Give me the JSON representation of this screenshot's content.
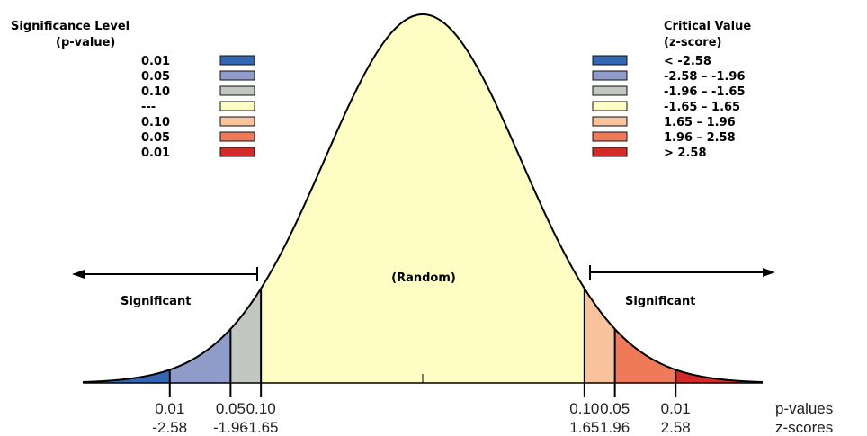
{
  "legend_left": {
    "title_line1": "Significance Level",
    "title_line2": "(p-value)",
    "items": [
      {
        "label": "0.01",
        "color": "#3366b3"
      },
      {
        "label": "0.05",
        "color": "#8f9cc9"
      },
      {
        "label": "0.10",
        "color": "#c3c7c2"
      },
      {
        "label": "---",
        "color": "#fdfdc4"
      },
      {
        "label": "0.10",
        "color": "#f8c29c"
      },
      {
        "label": "0.05",
        "color": "#ef7a5a"
      },
      {
        "label": "0.01",
        "color": "#d42a28"
      }
    ]
  },
  "legend_right": {
    "title_line1": "Critical Value",
    "title_line2": "(z-score)",
    "items": [
      {
        "label": "< -2.58",
        "color": "#3366b3"
      },
      {
        "label": "-2.58 – -1.96",
        "color": "#8f9cc9"
      },
      {
        "label": "-1.96 – -1.65",
        "color": "#c3c7c2"
      },
      {
        "label": "-1.65 – 1.65",
        "color": "#fdfdc4"
      },
      {
        "label": "1.65 – 1.96",
        "color": "#f8c29c"
      },
      {
        "label": "1.96 – 2.58",
        "color": "#ef7a5a"
      },
      {
        "label": "> 2.58",
        "color": "#d42a28"
      }
    ]
  },
  "regions": {
    "left_label": "Significant",
    "center_label": "(Random)",
    "right_label": "Significant"
  },
  "curve": {
    "fill_colors": {
      "far_left": "#3366b3",
      "mid_left": "#8f9cc9",
      "near_left": "#c3c7c2",
      "center": "#fdfdc4",
      "near_right": "#f8c29c",
      "mid_right": "#ef7a5a",
      "far_right": "#d42a28"
    }
  },
  "axis": {
    "left_ticks": [
      {
        "z": -2.58,
        "p_label": "0.01",
        "z_label": "-2.58"
      },
      {
        "z": -1.96,
        "p_label": "0.05",
        "z_label": "-1.96"
      },
      {
        "z": -1.65,
        "p_label": "0.10",
        "z_label": "-1.65"
      }
    ],
    "right_ticks": [
      {
        "z": 1.65,
        "p_label": "0.10",
        "z_label": "1.65"
      },
      {
        "z": 1.96,
        "p_label": "0.05",
        "z_label": "1.96"
      },
      {
        "z": 2.58,
        "p_label": "0.01",
        "z_label": "2.58"
      }
    ],
    "p_row_label": "p-values",
    "z_row_label": "z-scores"
  }
}
